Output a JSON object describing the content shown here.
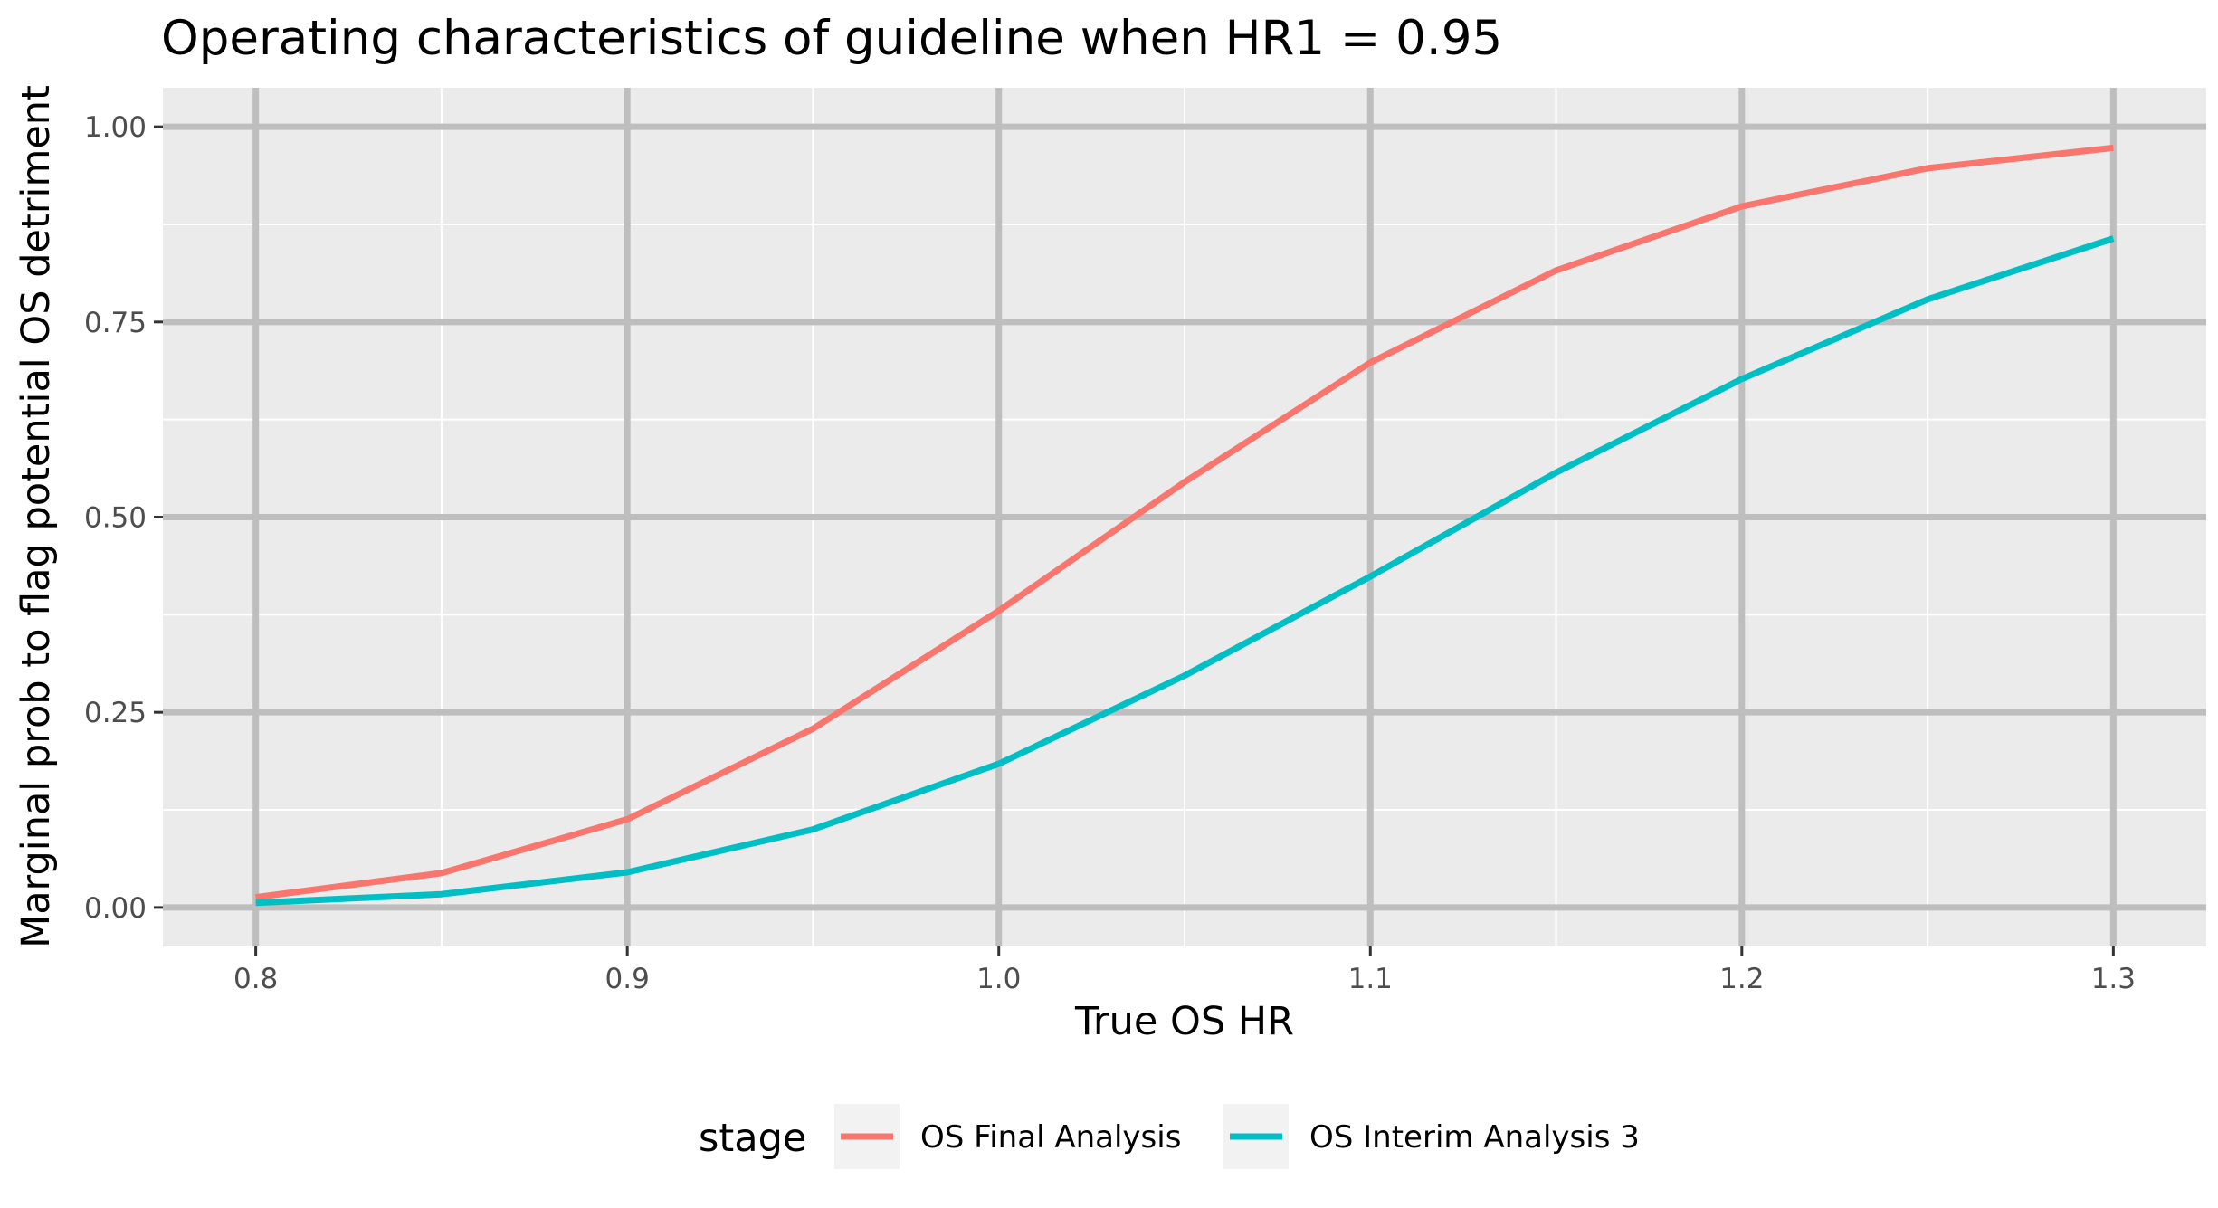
{
  "chart_data": {
    "type": "line",
    "title": "Operating characteristics of guideline when HR1 = 0.95",
    "xlabel": "True OS HR",
    "ylabel": "Marginal prob to flag potential OS detriment",
    "x": [
      0.8,
      0.85,
      0.9,
      0.95,
      1.0,
      1.05,
      1.1,
      1.15,
      1.2,
      1.25,
      1.3
    ],
    "xlim": [
      0.775,
      1.325
    ],
    "ylim": [
      -0.05,
      1.05
    ],
    "x_major_ticks": [
      0.8,
      0.9,
      1.0,
      1.1,
      1.2,
      1.3
    ],
    "x_tick_labels": [
      "0.8",
      "0.9",
      "1.0",
      "1.1",
      "1.2",
      "1.3"
    ],
    "x_minor_ticks": [
      0.85,
      0.95,
      1.05,
      1.15,
      1.25
    ],
    "y_major_ticks": [
      0,
      0.25,
      0.5,
      0.75,
      1.0
    ],
    "y_tick_labels": [
      "0.00",
      "0.25",
      "0.50",
      "0.75",
      "1.00"
    ],
    "y_minor_ticks": [
      0.125,
      0.375,
      0.625,
      0.875
    ],
    "grid": true,
    "legend_title": "stage",
    "legend_position": "bottom",
    "series": [
      {
        "name": "OS Final Analysis",
        "color": "#F8766D",
        "values": [
          0.013,
          0.044,
          0.113,
          0.229,
          0.38,
          0.545,
          0.698,
          0.816,
          0.898,
          0.947,
          0.973
        ]
      },
      {
        "name": "OS Interim Analysis 3",
        "color": "#00BFC4",
        "values": [
          0.006,
          0.017,
          0.045,
          0.1,
          0.184,
          0.297,
          0.424,
          0.557,
          0.677,
          0.779,
          0.857
        ]
      }
    ]
  }
}
